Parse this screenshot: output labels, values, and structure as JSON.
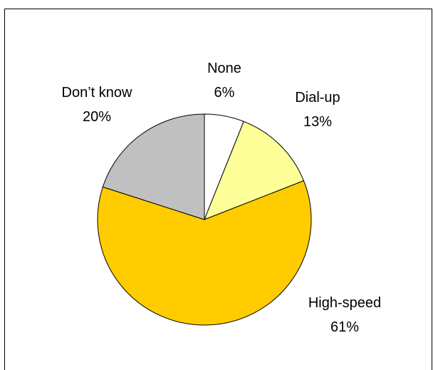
{
  "chart_data": {
    "type": "pie",
    "slices": [
      {
        "name": "None",
        "value": 6,
        "label": "6%",
        "color": "#FFFFFF"
      },
      {
        "name": "Dial-up",
        "value": 13,
        "label": "13%",
        "color": "#FFFF99"
      },
      {
        "name": "High-speed",
        "value": 61,
        "label": "61%",
        "color": "#FFCC00"
      },
      {
        "name": "Don’t know",
        "value": 20,
        "label": "20%",
        "color": "#C0C0C0"
      }
    ],
    "start": "12 o'clock",
    "direction": "clockwise",
    "legend": "none"
  }
}
